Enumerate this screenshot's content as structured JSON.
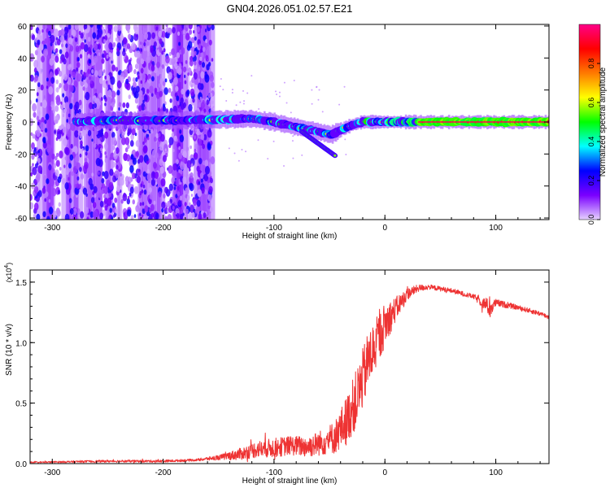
{
  "figure": {
    "title": "GN04.2026.051.02.57.E21"
  },
  "chart_data": [
    {
      "type": "heatmap",
      "title": "GN04.2026.051.02.57.E21",
      "xlabel": "Height of straight line (km)",
      "ylabel": "Frequency (Hz)",
      "xlim": [
        -320,
        148
      ],
      "ylim": [
        -61,
        61
      ],
      "x_ticks": [
        -300,
        -200,
        -100,
        0,
        100
      ],
      "y_ticks": [
        60,
        40,
        20,
        0,
        -20,
        -40,
        -60
      ],
      "grid": false,
      "colorbar": {
        "label": "Normalized spectral amplitude",
        "range": [
          0,
          1
        ],
        "ticks": [
          "0.0",
          "0.2",
          "0.4",
          "0.6",
          "0.8"
        ],
        "colors": [
          "#e6d2ff",
          "#7a00ff",
          "#0000ff",
          "#00ffff",
          "#00ff00",
          "#ffff00",
          "#ff7a00",
          "#ff0000",
          "#ff0088"
        ]
      },
      "carrier_track": {
        "start_km": -278,
        "x": [
          -278,
          -250,
          -200,
          -150,
          -120,
          -100,
          -80,
          -60,
          -48,
          -40,
          -30,
          -20,
          0,
          50,
          100,
          148
        ],
        "frequency": [
          0,
          1,
          1,
          1.5,
          2,
          0,
          -3,
          -6,
          -8,
          -5,
          -2,
          0,
          0,
          0,
          0,
          0
        ],
        "dip_branch": {
          "x": [
            -75,
            -65,
            -55,
            -45
          ],
          "frequency": [
            -6,
            -11,
            -16,
            -21
          ]
        }
      },
      "noise_region_km": [
        -320,
        -155
      ]
    },
    {
      "type": "line",
      "xlabel": "Height of straight line (km)",
      "ylabel": "SNR (10 * v/v)",
      "scale_label": "(x10",
      "scale_exp": "4",
      "scale_close": ")",
      "xlim": [
        -320,
        148
      ],
      "ylim": [
        0,
        1.6
      ],
      "x_ticks": [
        -300,
        -200,
        -100,
        0,
        100
      ],
      "y_ticks": [
        "0.0",
        "0.5",
        "1.0",
        "1.5"
      ],
      "grid": false,
      "color": "#ee3333",
      "x": [
        -320,
        -250,
        -200,
        -170,
        -150,
        -130,
        -115,
        -100,
        -85,
        -70,
        -55,
        -45,
        -35,
        -25,
        -15,
        -5,
        0,
        10,
        20,
        30,
        40,
        60,
        80,
        90,
        95,
        100,
        120,
        140,
        148
      ],
      "y": [
        0.01,
        0.02,
        0.02,
        0.03,
        0.05,
        0.08,
        0.12,
        0.13,
        0.15,
        0.14,
        0.18,
        0.22,
        0.35,
        0.55,
        0.85,
        1.05,
        1.15,
        1.28,
        1.4,
        1.45,
        1.46,
        1.43,
        1.38,
        1.32,
        1.28,
        1.33,
        1.29,
        1.24,
        1.21
      ],
      "amp": [
        0.005,
        0.01,
        0.01,
        0.01,
        0.02,
        0.05,
        0.07,
        0.08,
        0.08,
        0.09,
        0.11,
        0.14,
        0.2,
        0.25,
        0.25,
        0.2,
        0.18,
        0.1,
        0.05,
        0.03,
        0.02,
        0.02,
        0.02,
        0.05,
        0.08,
        0.03,
        0.02,
        0.02,
        0.02
      ]
    }
  ]
}
